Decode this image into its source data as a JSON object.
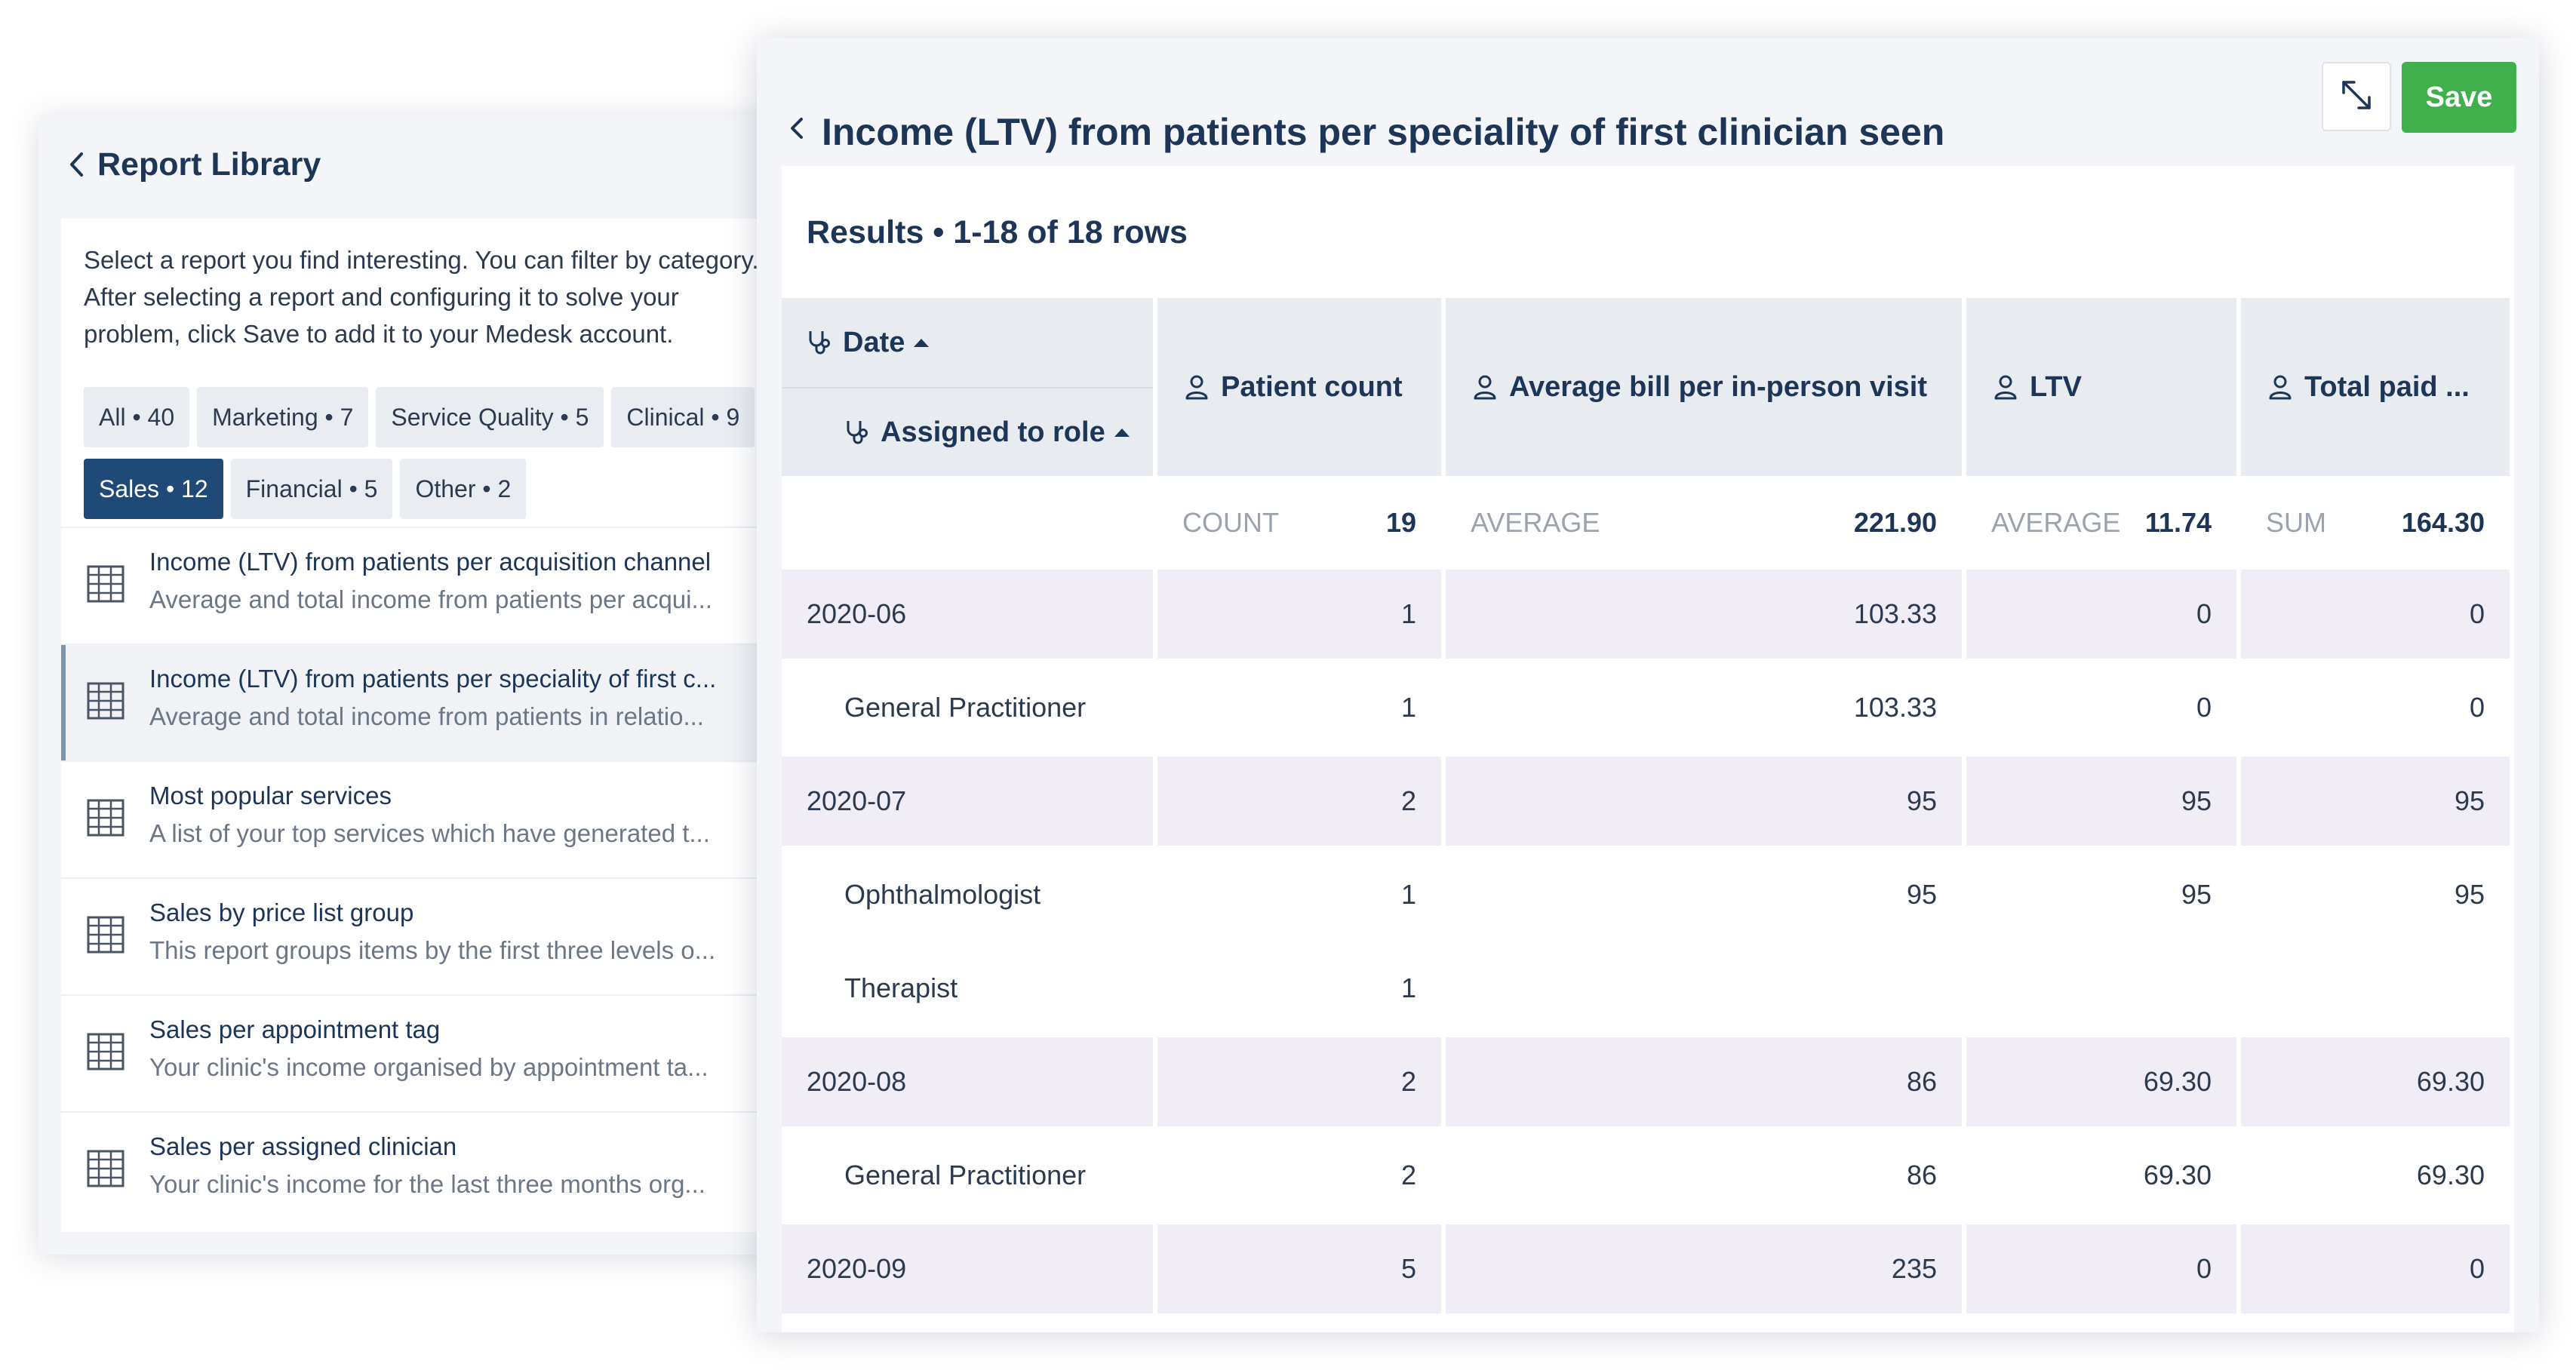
{
  "library": {
    "title": "Report Library",
    "description": "Select a report you find interesting. You can filter by category.\nAfter selecting a report and configuring it to solve your\nproblem, click Save to add it to your Medesk account.",
    "chips_row1": [
      "All • 40",
      "Marketing • 7",
      "Service Quality • 5",
      "Clinical • 9"
    ],
    "chips_row2": [
      "Sales • 12",
      "Financial • 5",
      "Other • 2"
    ],
    "active_chip": "Sales • 12",
    "reports": [
      {
        "title": "Income (LTV) from patients per acquisition channel",
        "subtitle": "Average and total income from patients per acqui..."
      },
      {
        "title": "Income (LTV) from patients per speciality of first c...",
        "subtitle": "Average and total income from patients in relatio..."
      },
      {
        "title": "Most popular services",
        "subtitle": "A list of your top services which have generated t..."
      },
      {
        "title": "Sales by price list group",
        "subtitle": "This report groups items by the first three levels o..."
      },
      {
        "title": "Sales per appointment tag",
        "subtitle": "Your clinic's income organised by appointment ta..."
      },
      {
        "title": "Sales per assigned clinician",
        "subtitle": "Your clinic's income for the last three months org..."
      }
    ]
  },
  "detail": {
    "title": "Income (LTV) from patients per speciality of first clinician seen",
    "save_label": "Save",
    "results_title": "Results • 1-18 of 18 rows",
    "columns": {
      "date": "Date",
      "assigned": "Assigned to role",
      "patient_count": "Patient count",
      "avg_bill": "Average bill per in-person visit",
      "ltv": "LTV",
      "total_paid": "Total paid ..."
    },
    "summary": {
      "patient_count": {
        "label": "COUNT",
        "value": "19"
      },
      "avg_bill": {
        "label": "AVERAGE",
        "value": "221.90"
      },
      "ltv": {
        "label": "AVERAGE",
        "value": "11.74"
      },
      "total_paid": {
        "label": "SUM",
        "value": "164.30"
      }
    },
    "rows": [
      {
        "type": "group",
        "name": "2020-06",
        "patient_count": "1",
        "avg_bill": "103.33",
        "ltv": "0",
        "total_paid": "0"
      },
      {
        "type": "leaf",
        "name": "General Practitioner",
        "patient_count": "1",
        "avg_bill": "103.33",
        "ltv": "0",
        "total_paid": "0"
      },
      {
        "type": "group",
        "name": "2020-07",
        "patient_count": "2",
        "avg_bill": "95",
        "ltv": "95",
        "total_paid": "95"
      },
      {
        "type": "leaf",
        "name": "Ophthalmologist",
        "patient_count": "1",
        "avg_bill": "95",
        "ltv": "95",
        "total_paid": "95"
      },
      {
        "type": "leaf",
        "name": "Therapist",
        "patient_count": "1",
        "avg_bill": "",
        "ltv": "",
        "total_paid": ""
      },
      {
        "type": "group",
        "name": "2020-08",
        "patient_count": "2",
        "avg_bill": "86",
        "ltv": "69.30",
        "total_paid": "69.30"
      },
      {
        "type": "leaf",
        "name": "General Practitioner",
        "patient_count": "2",
        "avg_bill": "86",
        "ltv": "69.30",
        "total_paid": "69.30"
      },
      {
        "type": "group",
        "name": "2020-09",
        "patient_count": "5",
        "avg_bill": "235",
        "ltv": "0",
        "total_paid": "0"
      }
    ]
  },
  "icons": {
    "back": "chevron-left-icon",
    "report": "table-icon",
    "expand": "expand-icon",
    "person": "person-icon",
    "stethoscope": "stethoscope-icon",
    "sort": "sort-ascending-icon"
  },
  "colors": {
    "primary": "#1f4a78",
    "save": "#3fb04b",
    "group_row": "#f1edf6",
    "header_cell": "#e8ecf1"
  }
}
